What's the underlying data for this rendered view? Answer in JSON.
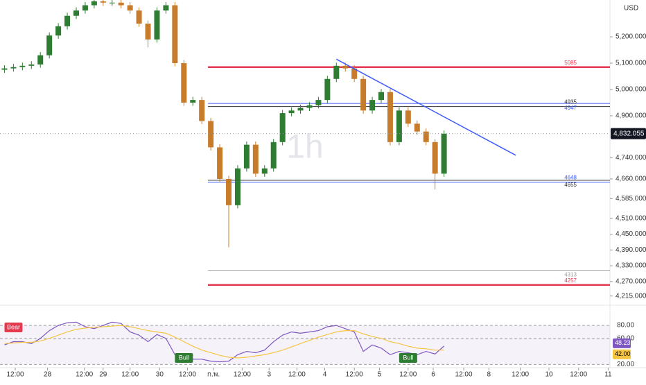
{
  "chart_data": {
    "type": "candlestick",
    "currency": "USD",
    "interval": "1h",
    "xlim": [
      -0.5,
      67.5
    ],
    "ylim": [
      4180,
      5340
    ],
    "xticks": [
      {
        "value": 1.2,
        "label": "12:00"
      },
      {
        "value": 4.8,
        "label": "28"
      },
      {
        "value": 8.9,
        "label": "12:00"
      },
      {
        "value": 11,
        "label": "29"
      },
      {
        "value": 14,
        "label": "12:00"
      },
      {
        "value": 17.3,
        "label": "30"
      },
      {
        "value": 20.4,
        "label": "12:00"
      },
      {
        "value": 23.3,
        "label": "ก.พ."
      },
      {
        "value": 26.5,
        "label": "12:00"
      },
      {
        "value": 29.5,
        "label": "3"
      },
      {
        "value": 32.6,
        "label": "12:00"
      },
      {
        "value": 35.7,
        "label": "4"
      },
      {
        "value": 39,
        "label": "12:00"
      },
      {
        "value": 41.8,
        "label": "5"
      },
      {
        "value": 45,
        "label": "12:00"
      },
      {
        "value": 47.8,
        "label": "6"
      },
      {
        "value": 51.2,
        "label": "12:00"
      },
      {
        "value": 54,
        "label": "8"
      },
      {
        "value": 57.5,
        "label": "12:00"
      },
      {
        "value": 60.7,
        "label": "10"
      },
      {
        "value": 64,
        "label": "12:00"
      },
      {
        "value": 67.3,
        "label": "11"
      }
    ],
    "yticks": [
      {
        "value": 5200,
        "label": "5,200.000"
      },
      {
        "value": 5100,
        "label": "5,100.000"
      },
      {
        "value": 5000,
        "label": "5,000.000"
      },
      {
        "value": 4900,
        "label": "4,900.000"
      },
      {
        "value": 4740,
        "label": "4,740.000"
      },
      {
        "value": 4660,
        "label": "4,660.000"
      },
      {
        "value": 4585,
        "label": "4,585.000"
      },
      {
        "value": 4510,
        "label": "4,510.000"
      },
      {
        "value": 4450,
        "label": "4,450.000"
      },
      {
        "value": 4390,
        "label": "4,390.000"
      },
      {
        "value": 4330,
        "label": "4,330.000"
      },
      {
        "value": 4270,
        "label": "4,270.000"
      },
      {
        "value": 4215,
        "label": "4,215.000"
      }
    ],
    "up_color": "#2e7d32",
    "down_color": "#c77c2c",
    "candles": {
      "x": [
        0,
        1,
        2,
        3,
        4,
        5,
        6,
        7,
        8,
        9,
        10,
        11,
        12,
        13,
        14,
        15,
        16,
        17,
        18,
        19,
        20,
        21,
        22,
        23,
        24,
        25,
        26,
        27,
        28,
        29,
        30,
        31,
        32,
        33,
        34,
        35,
        36,
        37,
        38,
        39,
        40,
        41,
        42,
        43,
        44,
        45,
        46,
        47,
        48,
        49
      ],
      "open": [
        5075,
        5080,
        5085,
        5090,
        5095,
        5130,
        5205,
        5240,
        5280,
        5300,
        5320,
        5335,
        5330,
        5330,
        5320,
        5300,
        5250,
        5190,
        5300,
        5320,
        5100,
        4950,
        4960,
        4880,
        4780,
        4660,
        4560,
        4700,
        4790,
        4680,
        4700,
        4800,
        4910,
        4920,
        4930,
        4940,
        4960,
        5040,
        5090,
        5080,
        5040,
        4920,
        4960,
        4990,
        4800,
        4920,
        4870,
        4840,
        4800,
        4680
      ],
      "high": [
        5092,
        5097,
        5102,
        5107,
        5142,
        5217,
        5252,
        5292,
        5312,
        5332,
        5347,
        5347,
        5342,
        5342,
        5332,
        5312,
        5262,
        5312,
        5332,
        5332,
        5112,
        4972,
        4972,
        4892,
        4792,
        4672,
        4712,
        4802,
        4802,
        4712,
        4812,
        4922,
        4932,
        4942,
        4952,
        4972,
        5052,
        5102,
        5102,
        5092,
        5052,
        4972,
        5002,
        5002,
        4932,
        4932,
        4882,
        4852,
        4812,
        4844
      ],
      "low": [
        5063,
        5068,
        5073,
        5078,
        5083,
        5118,
        5193,
        5228,
        5268,
        5288,
        5308,
        5318,
        5318,
        5308,
        5288,
        5238,
        5160,
        5178,
        5288,
        5088,
        4938,
        4938,
        4868,
        4768,
        4648,
        4400,
        4548,
        4688,
        4668,
        4668,
        4688,
        4788,
        4898,
        4908,
        4918,
        4928,
        4948,
        5028,
        5068,
        5028,
        4908,
        4908,
        4948,
        4788,
        4788,
        4858,
        4828,
        4788,
        4620,
        4668
      ],
      "close": [
        5080,
        5085,
        5090,
        5095,
        5130,
        5205,
        5240,
        5280,
        5300,
        5320,
        5335,
        5330,
        5330,
        5320,
        5300,
        5250,
        5190,
        5300,
        5320,
        5100,
        4950,
        4960,
        4880,
        4780,
        4660,
        4560,
        4700,
        4790,
        4680,
        4700,
        4800,
        4910,
        4920,
        4930,
        4940,
        4960,
        5040,
        5090,
        5080,
        5040,
        4920,
        4960,
        4990,
        4800,
        4920,
        4870,
        4840,
        4800,
        4680,
        4832
      ]
    },
    "last_price": {
      "value": 4832.055,
      "label": "4,832.055"
    },
    "levels": [
      {
        "value": 5085,
        "color": "#e53950"
      },
      {
        "value": 4947,
        "color": "#3d5afe"
      },
      {
        "value": 4935,
        "color": "#333333"
      },
      {
        "value": 4655,
        "color": "#333333"
      },
      {
        "value": 4648,
        "color": "#3d5afe"
      },
      {
        "value": 4313,
        "color": "#9e9e9e"
      },
      {
        "value": 4257,
        "color": "#e53950"
      }
    ],
    "trendline": {
      "x": [
        37,
        57
      ],
      "y": [
        5115,
        4750
      ],
      "color": "#3d5afe"
    },
    "rsi": {
      "ylim": [
        15,
        110
      ],
      "yticks": [
        {
          "value": 80,
          "label": "80.00"
        },
        {
          "value": 60,
          "label": "60.00"
        },
        {
          "value": 20,
          "label": "20.00"
        }
      ],
      "series": [
        {
          "color": "#7e57c2",
          "values": [
            50,
            55,
            55,
            52,
            60,
            72,
            80,
            84,
            85,
            78,
            75,
            80,
            85,
            83,
            70,
            65,
            55,
            66,
            60,
            35,
            30,
            28,
            28,
            25,
            24,
            25,
            35,
            40,
            38,
            42,
            55,
            65,
            70,
            68,
            70,
            72,
            78,
            80,
            75,
            70,
            40,
            50,
            45,
            35,
            40,
            38,
            35,
            40,
            36,
            48.23
          ],
          "last_label": "48.23"
        },
        {
          "color": "#f5c542",
          "values": [
            52,
            53,
            54,
            54,
            56,
            60,
            65,
            70,
            74,
            76,
            77,
            78,
            79,
            80,
            78,
            75,
            72,
            70,
            68,
            62,
            55,
            48,
            42,
            38,
            34,
            31,
            30,
            31,
            33,
            35,
            38,
            42,
            47,
            52,
            57,
            62,
            66,
            70,
            72,
            72,
            67,
            63,
            60,
            55,
            52,
            48,
            45,
            44,
            42,
            42
          ],
          "last_label": "42.00"
        }
      ],
      "annotations": [
        {
          "text": "Bear",
          "x": 0,
          "color": "#e53950"
        },
        {
          "text": "Bull",
          "x": 19,
          "color": "#2e7d32"
        },
        {
          "text": "Bull",
          "x": 44,
          "color": "#2e7d32"
        }
      ]
    }
  }
}
